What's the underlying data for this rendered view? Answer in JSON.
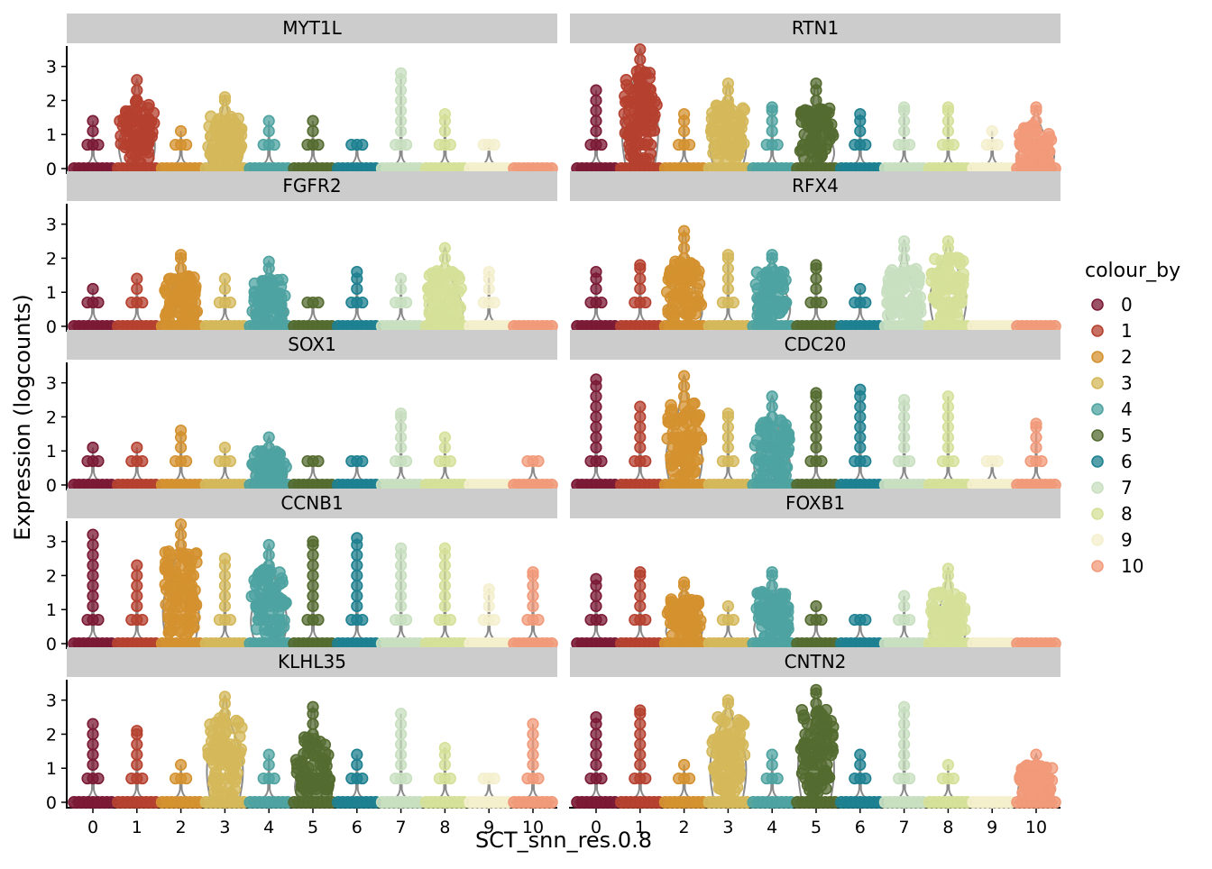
{
  "chart_data": {
    "type": "scatter",
    "subtype": "violin-jitter",
    "xlabel": "SCT_snn_res.0.8",
    "ylabel": "Expression (logcounts)",
    "categories": [
      "0",
      "1",
      "2",
      "3",
      "4",
      "5",
      "6",
      "7",
      "8",
      "9",
      "10"
    ],
    "ylim": [
      0,
      3.6
    ],
    "y_ticks": [
      0,
      1,
      2,
      3
    ],
    "legend": {
      "title": "colour_by",
      "position": "right",
      "entries": [
        "0",
        "1",
        "2",
        "3",
        "4",
        "5",
        "6",
        "7",
        "8",
        "9",
        "10"
      ]
    },
    "colors": [
      "#7b1a35",
      "#b5402f",
      "#d4912f",
      "#d4b85a",
      "#4ea3a1",
      "#546b30",
      "#1d8090",
      "#c8dfc0",
      "#d5e098",
      "#f4efcc",
      "#f19a7a"
    ],
    "panels": [
      {
        "gene": "MYT1L",
        "max": [
          1.4,
          2.6,
          1.1,
          2.1,
          1.4,
          1.4,
          0.7,
          2.8,
          1.6,
          0.7,
          0.0
        ],
        "body": [
          0,
          1.3,
          0,
          0.9,
          0,
          0,
          0,
          0,
          0,
          0,
          0
        ]
      },
      {
        "gene": "RTN1",
        "max": [
          2.3,
          3.5,
          1.6,
          2.5,
          1.8,
          2.5,
          1.6,
          1.8,
          1.8,
          1.1,
          1.8
        ],
        "body": [
          0,
          2.1,
          0,
          1.2,
          0,
          0.9,
          0,
          0,
          0,
          0,
          0.7
        ]
      },
      {
        "gene": "FGFR2",
        "max": [
          1.1,
          1.4,
          2.1,
          1.4,
          1.9,
          0.7,
          1.6,
          1.4,
          2.3,
          1.6,
          0.0
        ],
        "body": [
          0,
          0,
          0.7,
          0,
          0.8,
          0,
          0,
          0,
          0.9,
          0,
          0
        ]
      },
      {
        "gene": "RFX4",
        "max": [
          1.6,
          1.8,
          2.8,
          2.1,
          2.1,
          1.8,
          1.1,
          2.5,
          2.5,
          0.0,
          0.0
        ],
        "body": [
          0,
          0,
          0.8,
          0,
          1.0,
          0,
          0,
          0.8,
          1.5,
          0,
          0
        ]
      },
      {
        "gene": "SOX1",
        "max": [
          1.1,
          1.1,
          1.6,
          1.1,
          1.4,
          0.7,
          0.7,
          2.1,
          1.4,
          0.0,
          0.7
        ],
        "body": [
          0,
          0,
          0,
          0,
          0.5,
          0,
          0,
          0,
          0,
          0,
          0
        ]
      },
      {
        "gene": "CDC20",
        "max": [
          3.1,
          2.3,
          3.2,
          2.1,
          2.6,
          2.7,
          2.8,
          2.5,
          2.6,
          0.7,
          1.8
        ],
        "body": [
          0,
          0,
          1.5,
          0,
          1.1,
          0,
          0,
          0,
          0,
          0,
          0
        ]
      },
      {
        "gene": "CCNB1",
        "max": [
          3.2,
          2.3,
          3.5,
          2.5,
          2.9,
          3.0,
          3.1,
          2.8,
          2.8,
          1.6,
          2.1
        ],
        "body": [
          0,
          0,
          1.8,
          0,
          1.3,
          0,
          0,
          0,
          0,
          0,
          0
        ]
      },
      {
        "gene": "FOXB1",
        "max": [
          1.9,
          2.1,
          1.8,
          1.1,
          2.1,
          1.1,
          0.7,
          1.4,
          2.2,
          0.0,
          0.0
        ],
        "body": [
          0,
          0,
          0.7,
          0,
          0.8,
          0,
          0,
          0,
          0.7,
          0,
          0
        ]
      },
      {
        "gene": "KLHL35",
        "max": [
          2.3,
          2.1,
          1.1,
          3.1,
          1.4,
          2.8,
          1.4,
          2.6,
          1.6,
          0.7,
          2.3
        ],
        "body": [
          0,
          0,
          0,
          1.8,
          0,
          0.9,
          0,
          0,
          0,
          0,
          0
        ]
      },
      {
        "gene": "CNTN2",
        "max": [
          2.5,
          2.7,
          1.1,
          3.0,
          1.4,
          3.3,
          1.4,
          2.8,
          1.1,
          0.0,
          1.4
        ],
        "body": [
          0,
          0,
          0,
          1.9,
          0,
          2.0,
          0,
          0,
          0,
          0,
          0.7
        ]
      }
    ]
  }
}
